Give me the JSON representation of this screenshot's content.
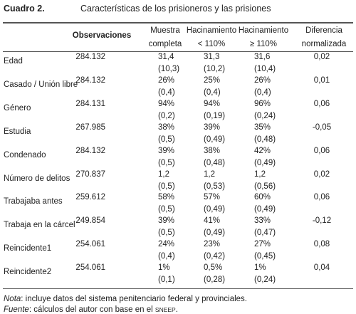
{
  "header": {
    "label": "Cuadro 2.",
    "title": "Características de los prisioneros y las prisiones"
  },
  "table": {
    "columns": [
      [
        "Observaciones"
      ],
      [
        "Muestra",
        "completa"
      ],
      [
        "Hacinamiento",
        "< 110%"
      ],
      [
        "Hacinamiento",
        "≥ 110%"
      ],
      [
        "Diferencia",
        "normalizada"
      ]
    ],
    "rows": [
      {
        "label": "Edad",
        "obs": "284.132",
        "cells": [
          [
            "31,4",
            "(10,3)"
          ],
          [
            "31,3",
            "(10,2)"
          ],
          [
            "31,6",
            "(10,4)"
          ]
        ],
        "diff": "0,02"
      },
      {
        "label": "Casado / Unión libre",
        "obs": "284.132",
        "cells": [
          [
            "26%",
            "(0,4)"
          ],
          [
            "25%",
            "(0,4)"
          ],
          [
            "26%",
            "(0,4)"
          ]
        ],
        "diff": "0,01"
      },
      {
        "label": "Género",
        "obs": "284.131",
        "cells": [
          [
            "94%",
            "(0,2)"
          ],
          [
            "94%",
            "(0,19)"
          ],
          [
            "96%",
            "(0,24)"
          ]
        ],
        "diff": "0,06"
      },
      {
        "label": "Estudia",
        "obs": "267.985",
        "cells": [
          [
            "38%",
            "(0,5)"
          ],
          [
            "39%",
            "(0,49)"
          ],
          [
            "35%",
            "(0,48)"
          ]
        ],
        "diff": "-0,05"
      },
      {
        "label": "Condenado",
        "obs": "284.132",
        "cells": [
          [
            "39%",
            "(0,5)"
          ],
          [
            "38%",
            "(0,48)"
          ],
          [
            "42%",
            "(0,49)"
          ]
        ],
        "diff": "0,06"
      },
      {
        "label": "Número de delitos",
        "obs": "270.837",
        "cells": [
          [
            "1,2",
            "(0,5)"
          ],
          [
            "1,2",
            "(0,53)"
          ],
          [
            "1,2",
            "(0,56)"
          ]
        ],
        "diff": "0,02"
      },
      {
        "label": "Trabajaba antes",
        "obs": "259.612",
        "cells": [
          [
            "58%",
            "(0,5)"
          ],
          [
            "57%",
            "(0,49)"
          ],
          [
            "60%",
            "(0,49)"
          ]
        ],
        "diff": "0,06"
      },
      {
        "label": "Trabaja en la cárcel",
        "obs": "249.854",
        "cells": [
          [
            "39%",
            "(0,5)"
          ],
          [
            "41%",
            "(0,49)"
          ],
          [
            "33%",
            "(0,47)"
          ]
        ],
        "diff": "-0,12"
      },
      {
        "label": "Reincidente1",
        "obs": "254.061",
        "cells": [
          [
            "24%",
            "(0,4)"
          ],
          [
            "23%",
            "(0,42)"
          ],
          [
            "27%",
            "(0,45)"
          ]
        ],
        "diff": "0,08"
      },
      {
        "label": "Reincidente2",
        "obs": "254.061",
        "cells": [
          [
            "1%",
            "(0,1)"
          ],
          [
            "0,5%",
            "(0,28)"
          ],
          [
            "1%",
            "(0,24)"
          ]
        ],
        "diff": "0,04"
      }
    ]
  },
  "notes": [
    {
      "label": "Nota",
      "text": ": incluye datos del sistema penitenciario federal y provinciales."
    },
    {
      "label": "Fuente",
      "text": ": cálculos del autor con base en el ",
      "abbr": "SNEEP",
      "end": "."
    }
  ]
}
